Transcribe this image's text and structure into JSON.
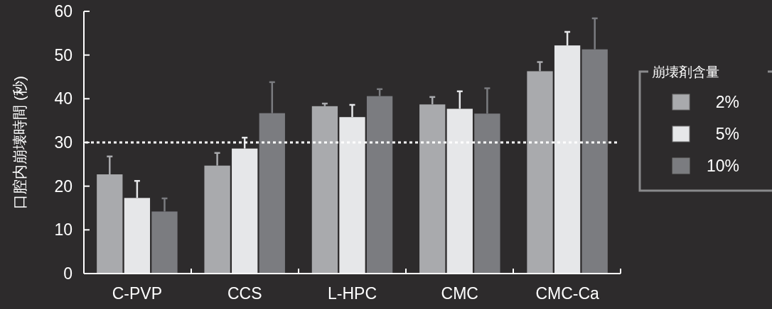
{
  "chart_data": {
    "type": "bar",
    "ylabel": "口腔内崩壊時間 (秒)",
    "legend_title": "崩壊剤含量",
    "categories": [
      "C-PVP",
      "CCS",
      "L-HPC",
      "CMC",
      "CMC-Ca"
    ],
    "series": [
      {
        "name": "2%",
        "color": "#a9aaad",
        "values": [
          22.7,
          24.7,
          38.3,
          38.7,
          46.3
        ],
        "errors": [
          [
            22.7,
            26.8
          ],
          [
            24.7,
            27.6
          ],
          [
            38.3,
            38.9
          ],
          [
            38.7,
            40.4
          ],
          [
            46.3,
            48.4
          ]
        ]
      },
      {
        "name": "5%",
        "color": "#e6e7e9",
        "values": [
          17.3,
          28.6,
          35.8,
          37.7,
          52.2
        ],
        "errors": [
          [
            17.3,
            21.2
          ],
          [
            28.6,
            31.1
          ],
          [
            35.8,
            38.6
          ],
          [
            37.7,
            41.7
          ],
          [
            52.2,
            55.3
          ]
        ]
      },
      {
        "name": "10%",
        "color": "#7b7c80",
        "values": [
          14.2,
          36.7,
          40.6,
          36.6,
          51.3
        ],
        "errors": [
          [
            14.2,
            17.2
          ],
          [
            36.7,
            43.8
          ],
          [
            40.6,
            42.2
          ],
          [
            36.6,
            42.4
          ],
          [
            51.3,
            58.4
          ]
        ]
      }
    ],
    "ylim": [
      0,
      60
    ],
    "yticks": [
      0,
      10,
      20,
      30,
      40,
      50,
      60
    ],
    "ref_lines": [
      {
        "axis": "y",
        "value": 30,
        "color": "#ffffff",
        "line_style": "dotted"
      }
    ],
    "grid": false,
    "legend": "right"
  }
}
